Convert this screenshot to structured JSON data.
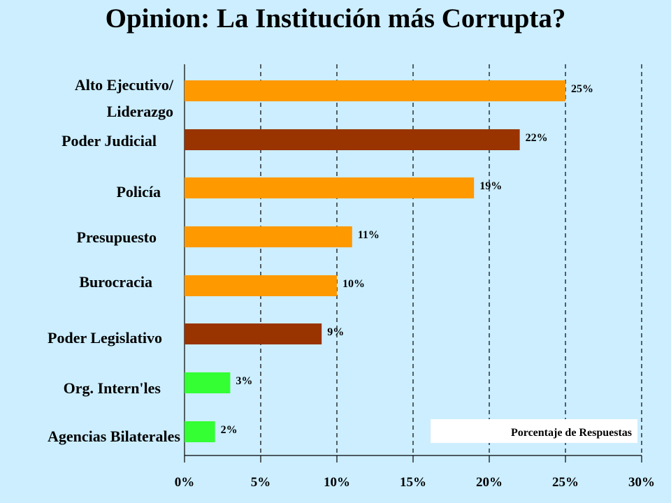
{
  "chart_data": {
    "type": "bar",
    "orientation": "horizontal",
    "title": "Opinion: La Institución más Corrupta?",
    "categories": [
      "Alto Ejecutivo/ Liderazgo",
      "Poder Judicial",
      "Policía",
      "Presupuesto",
      "Burocracia",
      "Poder Legislativo",
      "Org. Intern'les",
      "Agencias Bilaterales"
    ],
    "category_lines": [
      [
        "Alto Ejecutivo/",
        "Liderazgo"
      ],
      [
        "Poder Judicial"
      ],
      [
        "Policía"
      ],
      [
        "Presupuesto"
      ],
      [
        "Burocracia"
      ],
      [
        "Poder Legislativo"
      ],
      [
        "Org. Intern'les"
      ],
      [
        "Agencias Bilaterales"
      ]
    ],
    "values": [
      25,
      22,
      19,
      11,
      10,
      9,
      3,
      2
    ],
    "value_labels": [
      "25%",
      "22%",
      "19%",
      "11%",
      "10%",
      "9%",
      "3%",
      "2%"
    ],
    "bar_colors": [
      "#ff9900",
      "#993300",
      "#ff9900",
      "#ff9900",
      "#ff9900",
      "#993300",
      "#33ff33",
      "#33ff33"
    ],
    "xlim": [
      0,
      30
    ],
    "xticks": [
      0,
      5,
      10,
      15,
      20,
      25,
      30
    ],
    "xtick_labels": [
      "0%",
      "5%",
      "10%",
      "15%",
      "20%",
      "25%",
      "30%"
    ],
    "grid": "vertical dashed",
    "legend_text": "Porcentaje de Respuestas",
    "legend_position": "bottom-right",
    "background_color": "#cceeff"
  }
}
